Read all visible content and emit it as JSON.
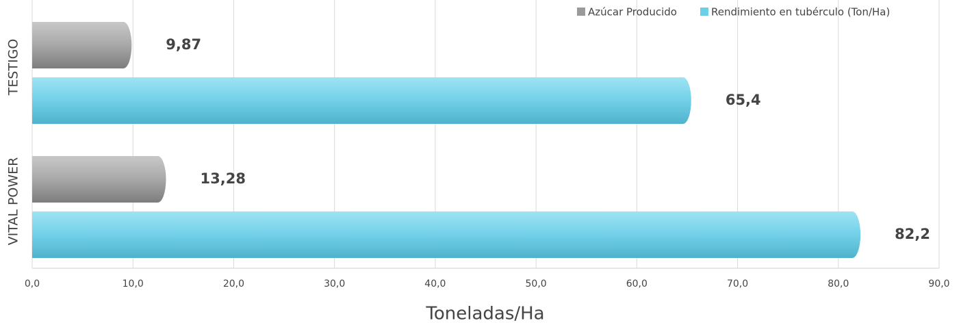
{
  "chart_data": {
    "type": "hbar",
    "categories": [
      "TESTIGO",
      "VITAL POWER"
    ],
    "series": [
      {
        "name": "Azúcar Producido",
        "color": "#9a9a9a",
        "values": [
          9.87,
          13.28
        ],
        "value_labels": [
          "9,87",
          "13,28"
        ]
      },
      {
        "name": "Rendimiento en tubérculo (Ton/Ha)",
        "color": "#6ccfe8",
        "values": [
          65.4,
          82.2
        ],
        "value_labels": [
          "65,4",
          "82,2"
        ]
      }
    ],
    "x_label": "Toneladas/Ha",
    "xlim": [
      0,
      90
    ],
    "xticks": [
      {
        "value": 0,
        "label": "0,0"
      },
      {
        "value": 10,
        "label": "10,0"
      },
      {
        "value": 20,
        "label": "20,0"
      },
      {
        "value": 30,
        "label": "30,0"
      },
      {
        "value": 40,
        "label": "40,0"
      },
      {
        "value": 50,
        "label": "50,0"
      },
      {
        "value": 60,
        "label": "60,0"
      },
      {
        "value": 70,
        "label": "70,0"
      },
      {
        "value": 80,
        "label": "80,0"
      },
      {
        "value": 90,
        "label": "90,0"
      }
    ],
    "grid": true,
    "legend": "top-right"
  }
}
